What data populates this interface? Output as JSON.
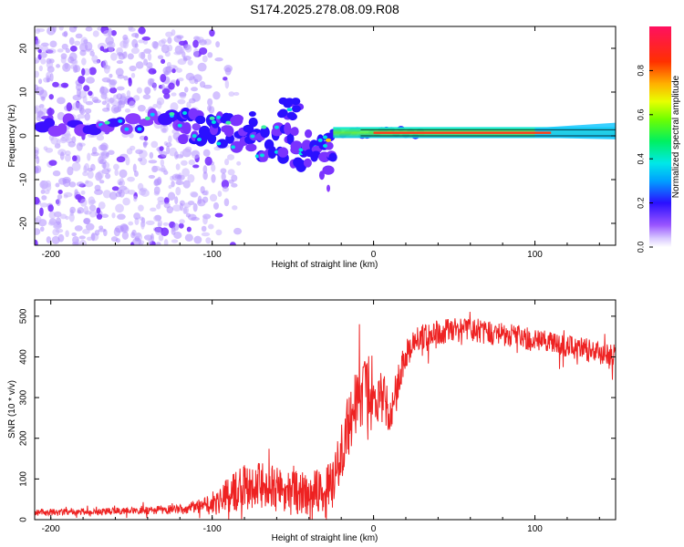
{
  "figure_title": "S174.2025.278.08.09.R08",
  "colors": {
    "snr_line": "#ee2222",
    "ridge_bg": "#3fe07a",
    "ridge_core": "#ff3b1a",
    "noise": "#a070ff"
  },
  "chart_data": [
    {
      "type": "heatmap",
      "title": "",
      "xlabel": "Height of straight line (km)",
      "ylabel": "Frequency (Hz)",
      "xlim": [
        -210,
        150
      ],
      "ylim": [
        -25,
        25
      ],
      "xticks": [
        -200,
        -100,
        0,
        100
      ],
      "xtick_labels": [
        "-200",
        "-100",
        "0",
        "100"
      ],
      "yticks": [
        -20,
        -10,
        0,
        10,
        20
      ],
      "ytick_labels": [
        "-20",
        "-10",
        "0",
        "10",
        "20"
      ],
      "grid": false,
      "colorbar": {
        "label": "Normalized spectral amplitude",
        "range": [
          0,
          1
        ],
        "ticks": [
          0,
          0.2,
          0.4,
          0.6,
          0.8
        ],
        "tick_labels": [
          "0.0",
          "0.2",
          "0.4",
          "0.6",
          "0.8"
        ],
        "colormap": "rainbow"
      },
      "features": {
        "noise_region_km": [
          -210,
          -95
        ],
        "ridge_km": [
          -25,
          150
        ],
        "ridge_freq_hz": [
          0,
          1.5
        ],
        "peak_amplitude": 0.95
      }
    },
    {
      "type": "line",
      "title": "",
      "xlabel": "Height of straight line (km)",
      "ylabel": "SNR (10 * v/v)",
      "xlim": [
        -210,
        150
      ],
      "ylim": [
        0,
        540
      ],
      "xticks": [
        -200,
        -100,
        0,
        100
      ],
      "xtick_labels": [
        "-200",
        "-100",
        "0",
        "100"
      ],
      "yticks": [
        0,
        100,
        200,
        300,
        400,
        500
      ],
      "ytick_labels": [
        "0",
        "100",
        "200",
        "300",
        "400",
        "500"
      ],
      "grid": false,
      "series": [
        {
          "name": "SNR",
          "x": [
            -210,
            -180,
            -150,
            -120,
            -105,
            -100,
            -90,
            -80,
            -70,
            -60,
            -50,
            -40,
            -30,
            -25,
            -20,
            -15,
            -10,
            -5,
            0,
            5,
            10,
            15,
            20,
            25,
            30,
            40,
            50,
            60,
            70,
            80,
            90,
            100,
            110,
            120,
            130,
            140,
            150
          ],
          "y": [
            18,
            20,
            22,
            25,
            35,
            45,
            60,
            80,
            85,
            75,
            65,
            70,
            75,
            90,
            160,
            240,
            300,
            320,
            330,
            300,
            270,
            330,
            400,
            440,
            450,
            460,
            465,
            470,
            460,
            455,
            450,
            440,
            435,
            425,
            420,
            410,
            405
          ],
          "noise": [
            8,
            8,
            8,
            12,
            18,
            30,
            45,
            55,
            55,
            55,
            55,
            55,
            55,
            60,
            70,
            80,
            80,
            80,
            75,
            70,
            60,
            50,
            40,
            30,
            30,
            30,
            30,
            30,
            30,
            28,
            28,
            28,
            28,
            28,
            28,
            28,
            28
          ]
        }
      ]
    }
  ]
}
